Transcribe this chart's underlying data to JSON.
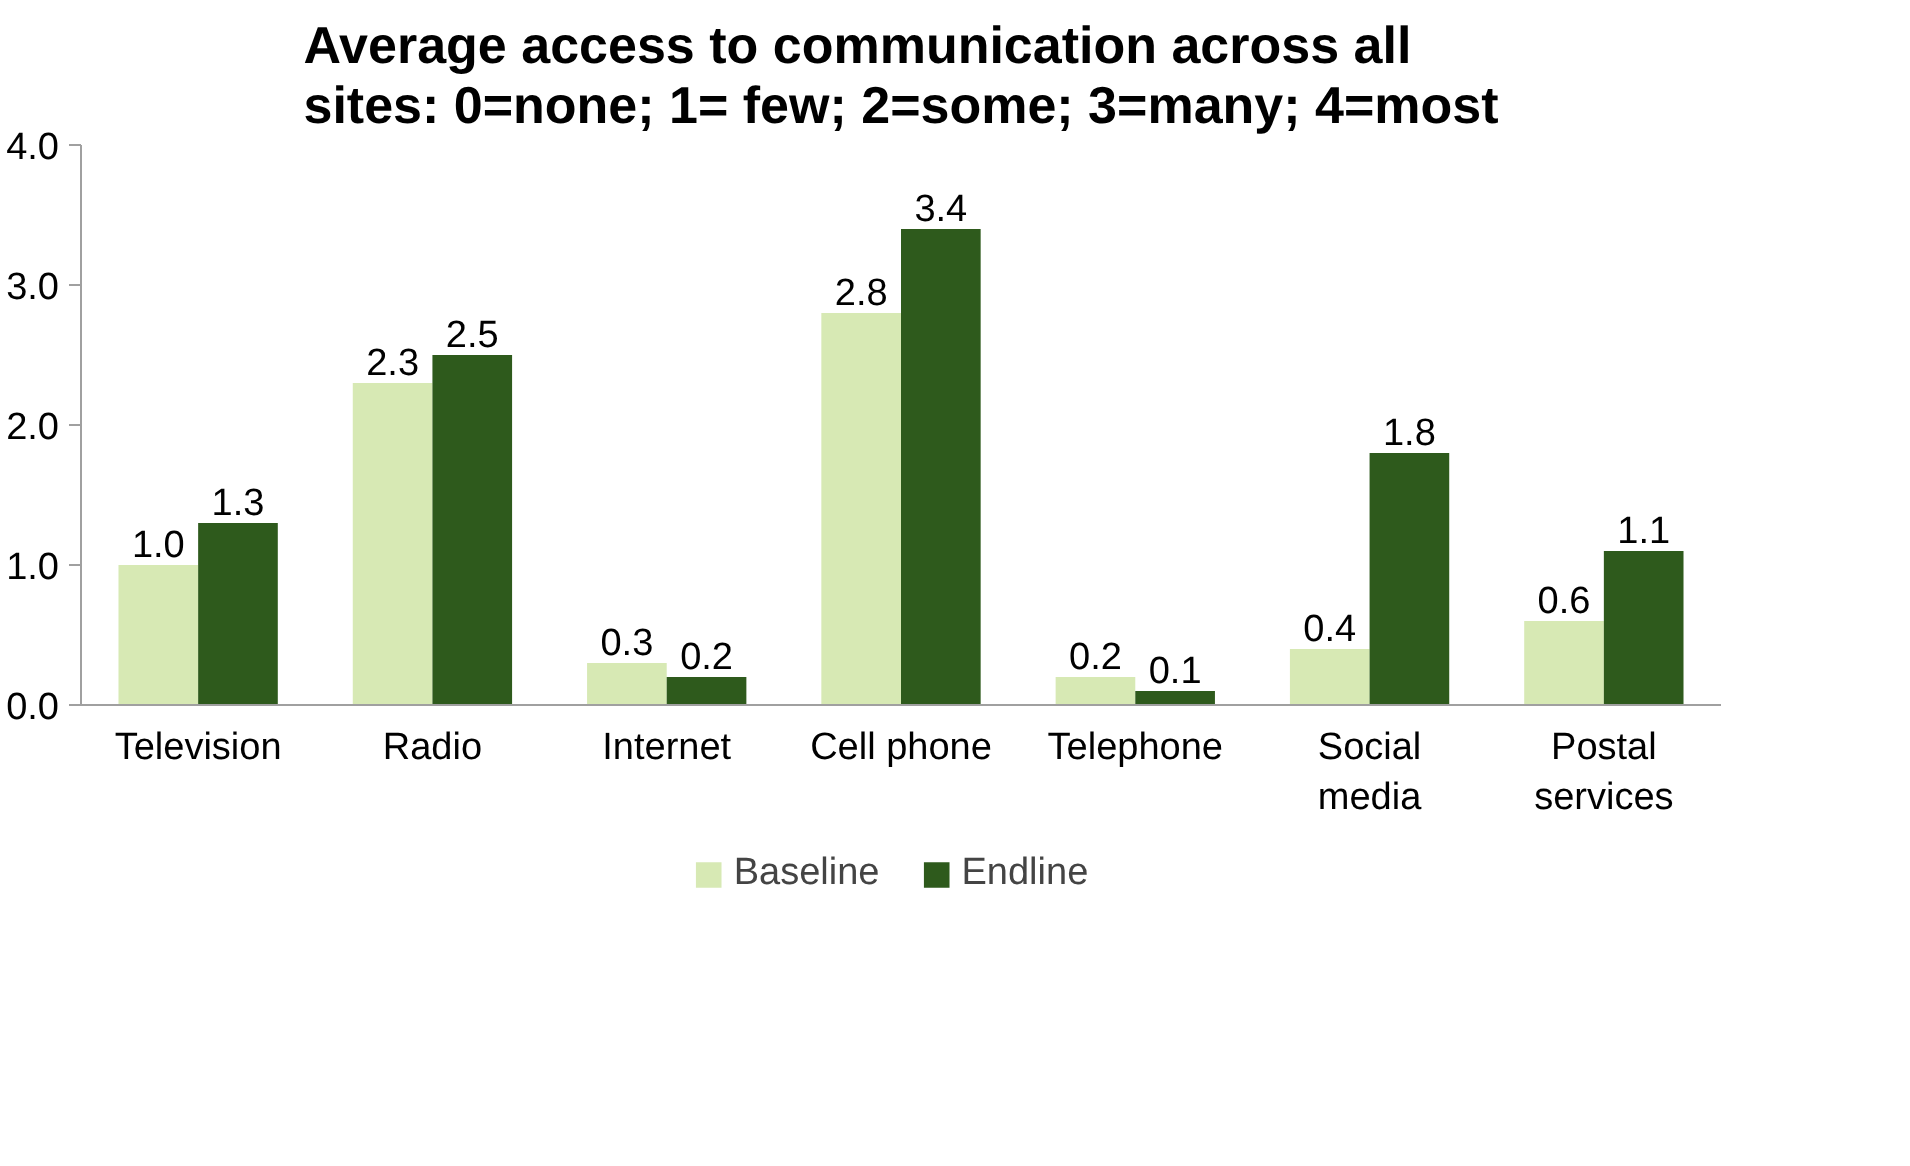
{
  "chart_data": {
    "type": "bar",
    "title": "Average access to communication across all sites: 0=none; 1= few; 2=some; 3=many; 4=most",
    "categories": [
      "Television",
      "Radio",
      "Internet",
      "Cell phone",
      "Telephone",
      "Social media",
      "Postal services"
    ],
    "series": [
      {
        "name": "Baseline",
        "color": "#d7e9b4",
        "values": [
          1.0,
          2.3,
          0.3,
          2.8,
          0.2,
          0.4,
          0.6
        ],
        "value_labels": [
          "1.0",
          "2.3",
          "0.3",
          "2.8",
          "0.2",
          "0.4",
          "0.6"
        ]
      },
      {
        "name": "Endline",
        "color": "#2e5a1c",
        "values": [
          1.3,
          2.5,
          0.2,
          3.4,
          0.1,
          1.8,
          1.1
        ],
        "value_labels": [
          "1.3",
          "2.5",
          "0.2",
          "3.4",
          "0.1",
          "1.8",
          "1.1"
        ]
      }
    ],
    "ylim": [
      0,
      4
    ],
    "yticks": [
      {
        "value": 0,
        "label": "0.0"
      },
      {
        "value": 1,
        "label": "1.0"
      },
      {
        "value": 2,
        "label": "2.0"
      },
      {
        "value": 3,
        "label": "3.0"
      },
      {
        "value": 4,
        "label": "4.0"
      }
    ],
    "legend": "bottom",
    "grid": false
  }
}
